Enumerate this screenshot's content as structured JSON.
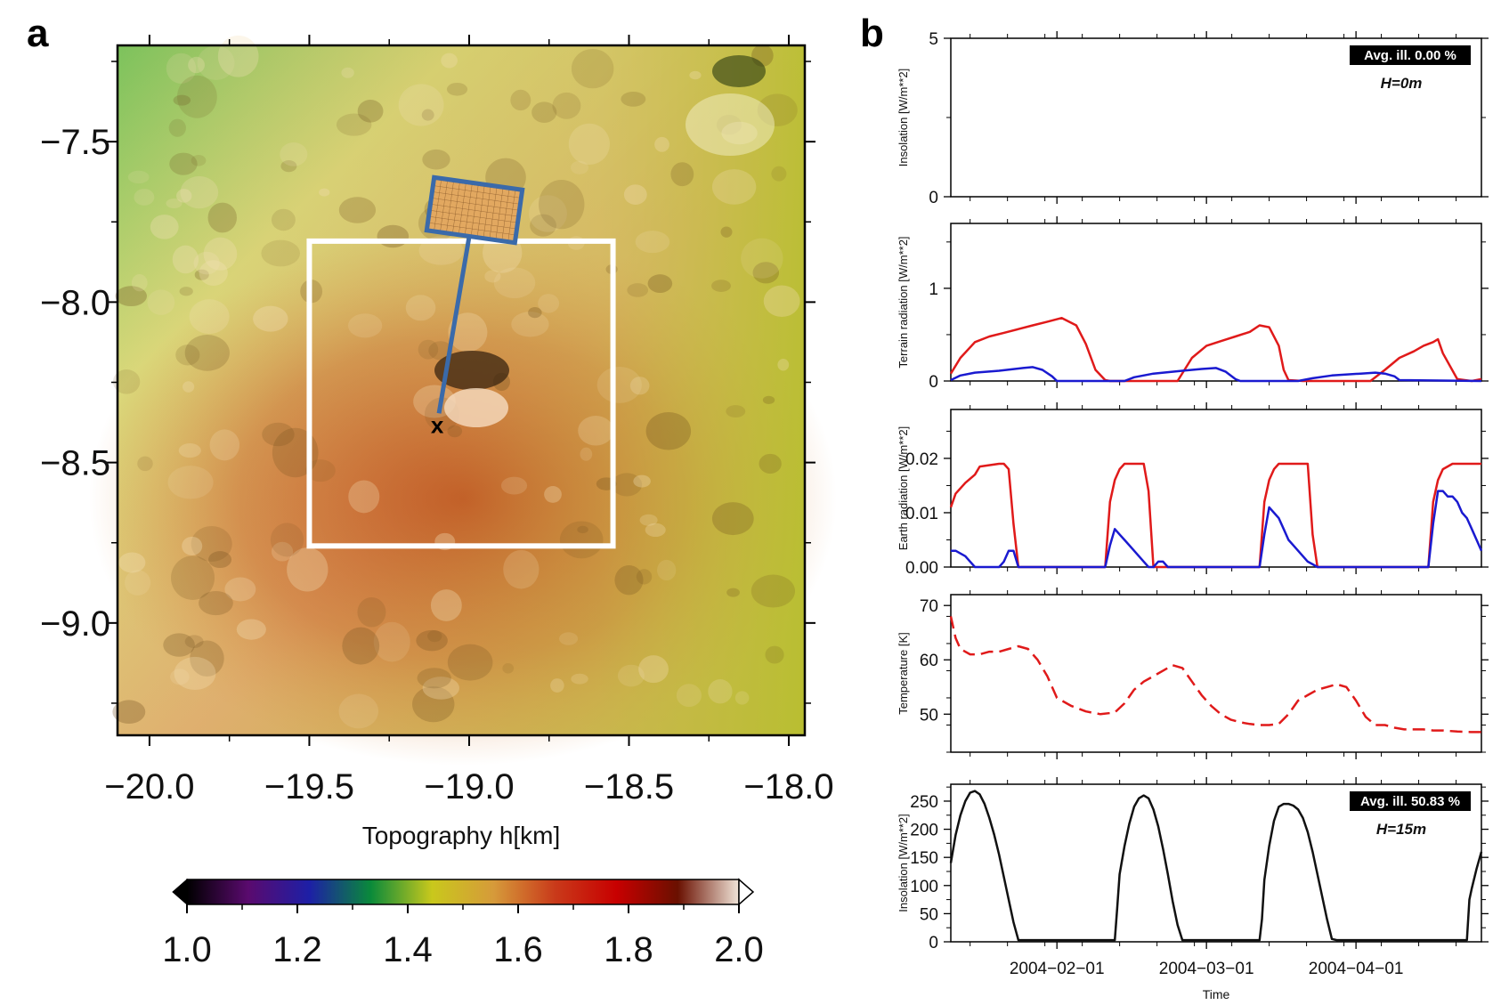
{
  "figure": {
    "panel_a_label": "a",
    "panel_b_label": "b"
  },
  "chart_data": [
    {
      "type": "heatmap",
      "title": "",
      "xlabel": "Topography h[km]",
      "ylabel": "",
      "xlim": [
        -20.1,
        -17.95
      ],
      "ylim": [
        -9.35,
        -7.2
      ],
      "x_ticks": [
        -20.0,
        -19.5,
        -19.0,
        -18.5,
        -18.0
      ],
      "x_tick_labels": [
        "−20.0",
        "−19.5",
        "−19.0",
        "−18.5",
        "−18.0"
      ],
      "y_ticks": [
        -7.5,
        -8.0,
        -8.5,
        -9.0
      ],
      "y_tick_labels": [
        "−7.5",
        "−8.0",
        "−8.5",
        "−9.0"
      ],
      "colorbar": {
        "range": [
          1.0,
          2.0
        ],
        "ticks": [
          1.0,
          1.2,
          1.4,
          1.6,
          1.8,
          2.0
        ],
        "tick_labels": [
          "1.0",
          "1.2",
          "1.4",
          "1.6",
          "1.8",
          "2.0"
        ],
        "colors": [
          "#000000",
          "#5a0a6e",
          "#1d1fa6",
          "#0a8a3a",
          "#c9c81c",
          "#d69a3a",
          "#c93a1a",
          "#c80000",
          "#6a1000",
          "#f0e4d8"
        ]
      },
      "white_box": {
        "x": [
          -19.5,
          -18.55
        ],
        "y": [
          -8.76,
          -7.81
        ]
      },
      "marker": {
        "x": -19.1,
        "y": -8.38,
        "label": "x"
      },
      "inset_pointer_target": {
        "x": -19.1,
        "y": -8.38
      }
    },
    {
      "type": "line",
      "ylabel": "Insolation [W/m**2]",
      "ylim": [
        0,
        5
      ],
      "y_ticks": [
        0,
        5
      ],
      "annotation_box": "Avg. ill. 0.00 %",
      "annotation_text": "H=0m",
      "series": []
    },
    {
      "type": "line",
      "ylabel": "Terrain radiation [W/m**2]",
      "ylim": [
        0,
        1.7
      ],
      "y_ticks": [
        0,
        1
      ],
      "series": [
        {
          "name": "red",
          "color": "#e01a1a",
          "x": [
            0,
            2,
            5,
            8,
            11,
            14,
            17,
            20,
            23,
            26,
            28,
            30,
            32,
            33,
            34,
            37,
            40,
            43,
            47,
            50,
            53,
            56,
            59,
            62,
            64,
            66,
            68,
            69,
            70,
            73,
            76,
            80,
            84,
            87,
            90,
            93,
            96,
            98,
            100,
            101,
            102,
            105,
            108,
            110
          ],
          "y": [
            0.08,
            0.25,
            0.42,
            0.48,
            0.52,
            0.56,
            0.6,
            0.64,
            0.68,
            0.6,
            0.4,
            0.12,
            0.01,
            0,
            0,
            0,
            0,
            0,
            0,
            0.25,
            0.38,
            0.43,
            0.48,
            0.53,
            0.6,
            0.58,
            0.38,
            0.12,
            0.01,
            0,
            0,
            0,
            0,
            0,
            0.12,
            0.25,
            0.32,
            0.38,
            0.42,
            0.45,
            0.3,
            0.02,
            0,
            0.02
          ]
        },
        {
          "name": "blue",
          "color": "#1a1ad0",
          "x": [
            0,
            2,
            5,
            10,
            15,
            17,
            19,
            21,
            22,
            26,
            36,
            38,
            42,
            48,
            52,
            55,
            57,
            59,
            60,
            66,
            72,
            75,
            79,
            85,
            88,
            90,
            92,
            93,
            110
          ],
          "y": [
            0.01,
            0.06,
            0.09,
            0.11,
            0.14,
            0.15,
            0.12,
            0.05,
            0,
            0,
            0,
            0.04,
            0.08,
            0.11,
            0.13,
            0.14,
            0.1,
            0.02,
            0,
            0,
            0,
            0.03,
            0.06,
            0.08,
            0.09,
            0.08,
            0.05,
            0.01,
            0
          ]
        }
      ]
    },
    {
      "type": "line",
      "ylabel": "Earth radiation [W/m**2]",
      "ylim": [
        0,
        0.029
      ],
      "y_ticks": [
        0.0,
        0.01,
        0.02
      ],
      "y_tick_labels": [
        "0.00",
        "0.01",
        "0.02"
      ],
      "series": [
        {
          "name": "red",
          "color": "#e01a1a",
          "x": [
            0,
            1,
            3,
            5,
            6,
            10,
            11,
            12,
            13,
            14,
            32,
            33,
            34,
            35,
            36,
            39,
            40,
            41,
            42,
            64,
            65,
            66,
            67,
            68,
            69,
            73,
            74,
            75,
            76,
            99,
            100,
            101,
            102,
            104,
            110
          ],
          "y": [
            0.011,
            0.0135,
            0.0155,
            0.017,
            0.0185,
            0.019,
            0.019,
            0.018,
            0.008,
            0,
            0,
            0.012,
            0.016,
            0.018,
            0.019,
            0.019,
            0.019,
            0.014,
            0,
            0,
            0.012,
            0.016,
            0.018,
            0.019,
            0.019,
            0.019,
            0.019,
            0.006,
            0,
            0,
            0.012,
            0.016,
            0.018,
            0.019,
            0.019
          ]
        },
        {
          "name": "blue",
          "color": "#1a1ad0",
          "x": [
            0,
            1,
            3,
            4,
            5,
            6,
            10,
            11,
            12,
            13,
            14,
            32,
            33,
            34,
            35,
            36,
            38,
            40,
            41,
            42,
            43,
            44,
            45,
            64,
            65,
            66,
            67,
            68,
            69,
            70,
            71,
            72,
            73,
            74,
            75,
            76,
            99,
            100,
            101,
            102,
            103,
            104,
            105,
            106,
            107,
            108,
            109,
            110
          ],
          "y": [
            0.003,
            0.003,
            0.002,
            0.001,
            0,
            0,
            0,
            0.001,
            0.003,
            0.003,
            0,
            0,
            0.004,
            0.007,
            0.006,
            0.005,
            0.003,
            0.001,
            0,
            0,
            0.001,
            0.001,
            0,
            0,
            0.006,
            0.011,
            0.01,
            0.009,
            0.007,
            0.005,
            0.004,
            0.003,
            0.002,
            0.001,
            0.0005,
            0,
            0,
            0.008,
            0.014,
            0.014,
            0.013,
            0.013,
            0.012,
            0.01,
            0.009,
            0.007,
            0.005,
            0.003
          ]
        }
      ]
    },
    {
      "type": "line",
      "ylabel": "Temperature [K]",
      "ylim": [
        43,
        72
      ],
      "y_ticks": [
        50,
        60,
        70
      ],
      "series": [
        {
          "name": "temperature",
          "color": "#e01a1a",
          "dashed": true,
          "x": [
            0,
            1,
            2,
            4,
            6,
            8,
            10,
            12,
            14,
            16,
            18,
            20,
            22,
            25,
            28,
            31,
            34,
            36,
            38,
            40,
            42,
            44,
            46,
            48,
            50,
            52,
            54,
            56,
            58,
            60,
            62,
            64,
            66,
            68,
            70,
            72,
            74,
            76,
            78,
            80,
            82,
            84,
            86,
            88,
            90,
            92,
            94,
            96,
            98,
            100,
            102,
            105,
            108,
            110
          ],
          "y": [
            68,
            64,
            62,
            61,
            61,
            61.5,
            61.5,
            62,
            62.5,
            62,
            60,
            57,
            53,
            51.5,
            50.5,
            50,
            50.3,
            52,
            54.5,
            56,
            57,
            58,
            59,
            58.5,
            56,
            53.5,
            51.5,
            50,
            49,
            48.5,
            48.2,
            48,
            48,
            48.2,
            50,
            52.5,
            53.5,
            54.5,
            55,
            55.5,
            55,
            52.5,
            49.5,
            48,
            48,
            47.5,
            47.2,
            47.2,
            47.2,
            47,
            47,
            46.8,
            46.7,
            46.7
          ]
        }
      ]
    },
    {
      "type": "line",
      "ylabel": "Insolation [W/m**2]",
      "xlabel": "Time",
      "ylim": [
        0,
        280
      ],
      "y_ticks": [
        0,
        50,
        100,
        150,
        200,
        250
      ],
      "annotation_box": "Avg. ill. 50.83 %",
      "annotation_text": "H=15m",
      "x_tick_labels": [
        "2004−02−01",
        "2004−03−01",
        "2004−04−01"
      ],
      "x_tick_positions": [
        22,
        53,
        84
      ],
      "x_range_days": [
        0,
        110
      ],
      "series": [
        {
          "name": "insolation",
          "color": "#111111",
          "x": [
            0,
            1,
            2,
            3,
            4,
            5,
            6,
            7,
            8,
            9,
            10,
            11,
            12,
            13,
            14,
            15,
            16,
            17,
            34,
            34.5,
            35,
            36,
            37,
            38,
            39,
            40,
            41,
            42,
            43,
            44,
            45,
            46,
            47,
            48,
            49,
            64,
            64.5,
            65,
            66,
            67,
            68,
            69,
            70,
            71,
            72,
            73,
            74,
            75,
            76,
            77,
            78,
            79,
            80,
            107,
            107.5,
            108,
            109,
            110
          ],
          "y": [
            140,
            190,
            225,
            250,
            265,
            268,
            262,
            245,
            220,
            190,
            155,
            115,
            75,
            35,
            3,
            3,
            3,
            3,
            3,
            60,
            120,
            170,
            210,
            240,
            255,
            260,
            255,
            235,
            205,
            165,
            120,
            72,
            30,
            3,
            3,
            3,
            40,
            110,
            170,
            215,
            240,
            245,
            245,
            242,
            235,
            220,
            195,
            160,
            120,
            80,
            40,
            5,
            3,
            3,
            75,
            95,
            130,
            160
          ]
        }
      ]
    }
  ]
}
